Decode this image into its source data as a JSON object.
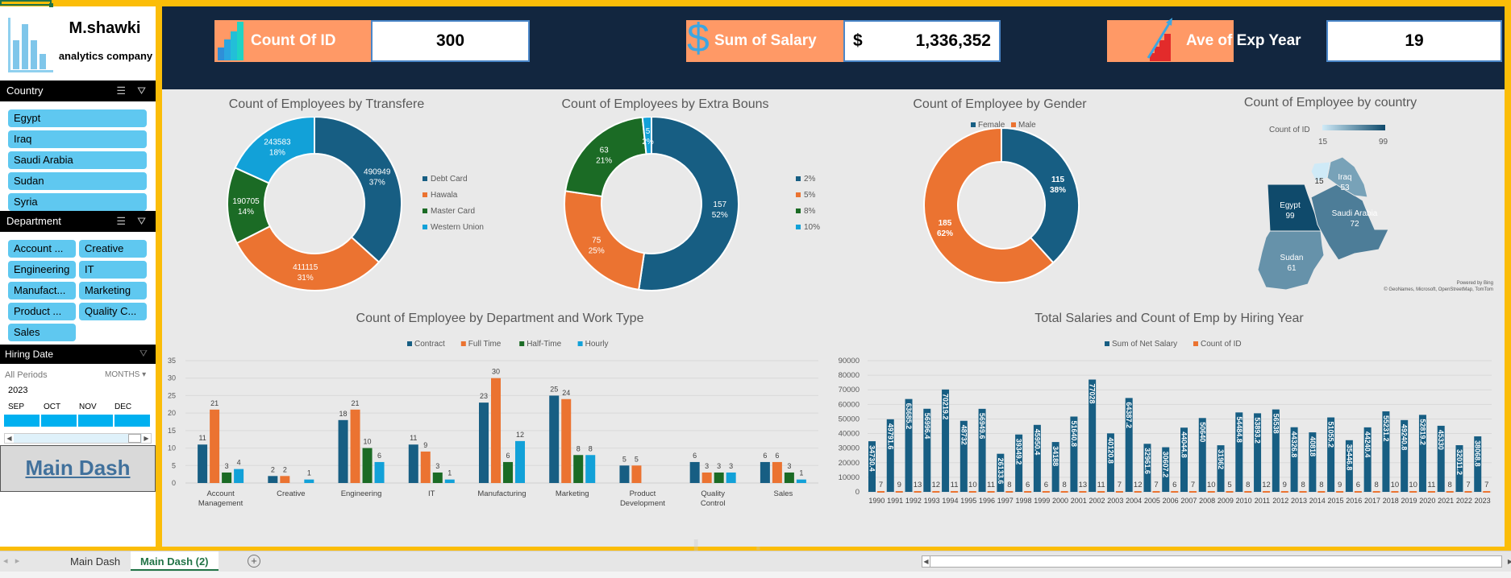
{
  "brand": {
    "name": "M.shawki",
    "subtitle": "analytics company"
  },
  "slicers": {
    "country": {
      "title": "Country",
      "items": [
        "Egypt",
        "Iraq",
        "Saudi Arabia",
        "Sudan",
        "Syria"
      ]
    },
    "department": {
      "title": "Department",
      "items": [
        "Account ...",
        "Creative",
        "Engineering",
        "IT",
        "Manufact...",
        "Marketing",
        "Product ...",
        "Quality C...",
        "Sales"
      ]
    },
    "hiring_date": {
      "title": "Hiring Date",
      "periods_label": "All Periods",
      "level_label": "MONTHS",
      "year": "2023",
      "months": [
        "SEP",
        "OCT",
        "NOV",
        "DEC"
      ]
    }
  },
  "main_dash_link": "Main Dash",
  "kpis": [
    {
      "label": "Count Of ID",
      "value": "300",
      "icon": "bar-chart-icon"
    },
    {
      "label": "Sum of Salary",
      "currency": "$",
      "value": "1,336,352",
      "icon": "dollar-icon"
    },
    {
      "label": "Ave of Exp Year",
      "value": "19",
      "icon": "growth-arrow-icon"
    }
  ],
  "colors": {
    "navy": "#175e83",
    "orange": "#eb7331",
    "green": "#1b6b25",
    "sky": "#12a1d8",
    "kpi_label_bg": "#ff9966",
    "header_bg": "#12263f",
    "frame": "#fbbd08"
  },
  "chart_data": [
    {
      "id": "transfer",
      "type": "pie",
      "variant": "donut",
      "title": "Count of Employees by Ttransfere",
      "legend_position": "right",
      "categories": [
        "Debt Card",
        "Hawala",
        "Master Card",
        "Western Union"
      ],
      "values": [
        490949,
        411115,
        190705,
        243583
      ],
      "percent_labels": [
        "37%",
        "31%",
        "14%",
        "18%"
      ]
    },
    {
      "id": "bonus",
      "type": "pie",
      "variant": "donut",
      "title": "Count of Employees by Extra Bouns",
      "legend_position": "right",
      "categories": [
        "2%",
        "5%",
        "8%",
        "10%"
      ],
      "values": [
        157,
        75,
        63,
        5
      ],
      "percent_labels": [
        "52%",
        "25%",
        "21%",
        "2%"
      ]
    },
    {
      "id": "gender",
      "type": "pie",
      "variant": "donut",
      "title": "Count of Employee by Gender",
      "legend_position": "top",
      "categories": [
        "Female",
        "Male"
      ],
      "values": [
        115,
        185
      ],
      "percent_labels": [
        "38%",
        "62%"
      ]
    },
    {
      "id": "country_map",
      "type": "heatmap",
      "variant": "choropleth-map",
      "title": "Count of Employee by country",
      "legend_title": "Count of ID",
      "range": [
        15,
        99
      ],
      "regions": [
        {
          "name": "Egypt",
          "value": 99
        },
        {
          "name": "Saudi Arabia",
          "value": 72
        },
        {
          "name": "Sudan",
          "value": 61
        },
        {
          "name": "Iraq",
          "value": 53
        },
        {
          "name": "",
          "value": 15
        }
      ],
      "credits": [
        "Powered by Bing",
        "© GeoNames, Microsoft, OpenStreetMap, TomTom"
      ]
    },
    {
      "id": "dept_worktype",
      "type": "bar",
      "title": "Count of Employee by Department and Work Type",
      "legend_position": "top",
      "categories": [
        "Account Management",
        "Creative",
        "Engineering",
        "IT",
        "Manufacturing",
        "Marketing",
        "Product Development",
        "Quality Control",
        "Sales"
      ],
      "series": [
        {
          "name": "Contract",
          "values": [
            11,
            2,
            18,
            11,
            23,
            25,
            5,
            6,
            6
          ]
        },
        {
          "name": "Full Time",
          "values": [
            21,
            2,
            21,
            9,
            30,
            24,
            5,
            3,
            6
          ]
        },
        {
          "name": "Half-Time",
          "values": [
            3,
            null,
            10,
            3,
            6,
            8,
            null,
            3,
            3
          ]
        },
        {
          "name": "Hourly",
          "values": [
            4,
            1,
            6,
            1,
            12,
            8,
            null,
            3,
            1
          ]
        }
      ],
      "ylim": [
        0,
        35
      ],
      "yticks": [
        0,
        5,
        10,
        15,
        20,
        25,
        30,
        35
      ],
      "grid": true
    },
    {
      "id": "salary_year",
      "type": "bar",
      "title": "Total Salaries and Count of Emp by Hiring Year",
      "legend_position": "top",
      "categories": [
        "1990",
        "1991",
        "1992",
        "1993",
        "1994",
        "1995",
        "1996",
        "1997",
        "1998",
        "1999",
        "2000",
        "2001",
        "2002",
        "2003",
        "2004",
        "2005",
        "2006",
        "2007",
        "2008",
        "2009",
        "2010",
        "2011",
        "2012",
        "2013",
        "2014",
        "2015",
        "2016",
        "2017",
        "2018",
        "2019",
        "2020",
        "2021",
        "2022",
        "2023"
      ],
      "series": [
        {
          "name": "Sum of Net Salary",
          "values": [
            34730.4,
            49791.6,
            63685.2,
            56996.4,
            70219.2,
            48732,
            56949.6,
            26133.6,
            39349.2,
            45950.4,
            34188,
            51640.8,
            77028,
            40120.8,
            64387.2,
            32961.6,
            30607.2,
            44044.8,
            50640,
            31962,
            54484.8,
            53893.2,
            56538,
            44326.8,
            40818,
            51055.2,
            35446.8,
            44240.4,
            55231.2,
            49240.8,
            52819.2,
            45330,
            32011.2,
            38068.8
          ]
        },
        {
          "name": "Count of ID",
          "values": [
            7,
            9,
            13,
            12,
            11,
            10,
            11,
            8,
            6,
            6,
            8,
            13,
            11,
            7,
            12,
            7,
            6,
            7,
            10,
            5,
            8,
            12,
            9,
            8,
            8,
            9,
            6,
            8,
            10,
            10,
            11,
            8,
            7,
            7
          ]
        }
      ],
      "ylim": [
        0,
        90000
      ],
      "yticks": [
        0,
        10000,
        20000,
        30000,
        40000,
        50000,
        60000,
        70000,
        80000,
        90000
      ],
      "grid": true
    }
  ],
  "sheets": {
    "tabs": [
      "Main Dash",
      "Main Dash (2)"
    ],
    "active": "Main Dash (2)"
  }
}
